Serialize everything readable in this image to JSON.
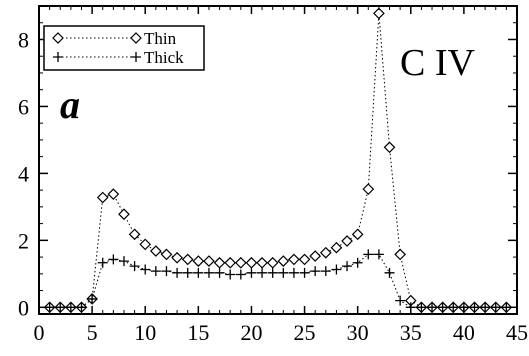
{
  "chart_data": {
    "type": "line",
    "title": "",
    "xlabel": "",
    "ylabel": "",
    "xlim": [
      0,
      45
    ],
    "ylim": [
      -0.2,
      9.0
    ],
    "xticks": [
      0,
      5,
      10,
      15,
      20,
      25,
      30,
      35,
      40,
      45
    ],
    "yticks": [
      0,
      2,
      4,
      6,
      8
    ],
    "grid": false,
    "legend": "top-left",
    "annotations": {
      "panel": "a",
      "ion": "C IV"
    },
    "series": [
      {
        "name": "Thin",
        "marker": "diamond",
        "line": "dotted",
        "x": [
          1,
          2,
          3,
          4,
          5,
          6,
          7,
          8,
          9,
          10,
          11,
          12,
          13,
          14,
          15,
          16,
          17,
          18,
          19,
          20,
          21,
          22,
          23,
          24,
          25,
          26,
          27,
          28,
          29,
          30,
          31,
          32,
          33,
          34,
          35,
          36,
          37,
          38,
          39,
          40,
          41,
          42,
          43,
          44
        ],
        "y": [
          0,
          0,
          0,
          0,
          0.25,
          3.28,
          3.38,
          2.78,
          2.18,
          1.88,
          1.68,
          1.58,
          1.48,
          1.43,
          1.38,
          1.38,
          1.33,
          1.33,
          1.33,
          1.33,
          1.33,
          1.33,
          1.38,
          1.43,
          1.43,
          1.53,
          1.63,
          1.78,
          1.98,
          2.18,
          3.53,
          8.78,
          4.78,
          1.58,
          0.2,
          0,
          0,
          0,
          0,
          0,
          0,
          0,
          0,
          0
        ]
      },
      {
        "name": "Thick",
        "marker": "plus",
        "line": "dotted",
        "x": [
          1,
          2,
          3,
          4,
          5,
          6,
          7,
          8,
          9,
          10,
          11,
          12,
          13,
          14,
          15,
          16,
          17,
          18,
          19,
          20,
          21,
          22,
          23,
          24,
          25,
          26,
          27,
          28,
          29,
          30,
          31,
          32,
          33,
          34,
          35,
          36,
          37,
          38,
          39,
          40,
          41,
          42,
          43,
          44
        ],
        "y": [
          0,
          0,
          0,
          0,
          0.25,
          1.33,
          1.43,
          1.38,
          1.23,
          1.13,
          1.08,
          1.08,
          1.03,
          1.03,
          1.03,
          1.03,
          1.03,
          0.98,
          0.98,
          1.03,
          1.03,
          1.03,
          1.03,
          1.03,
          1.03,
          1.08,
          1.08,
          1.13,
          1.23,
          1.33,
          1.58,
          1.58,
          1.03,
          0.2,
          0,
          0,
          0,
          0,
          0,
          0,
          0,
          0,
          0,
          0
        ]
      }
    ]
  }
}
